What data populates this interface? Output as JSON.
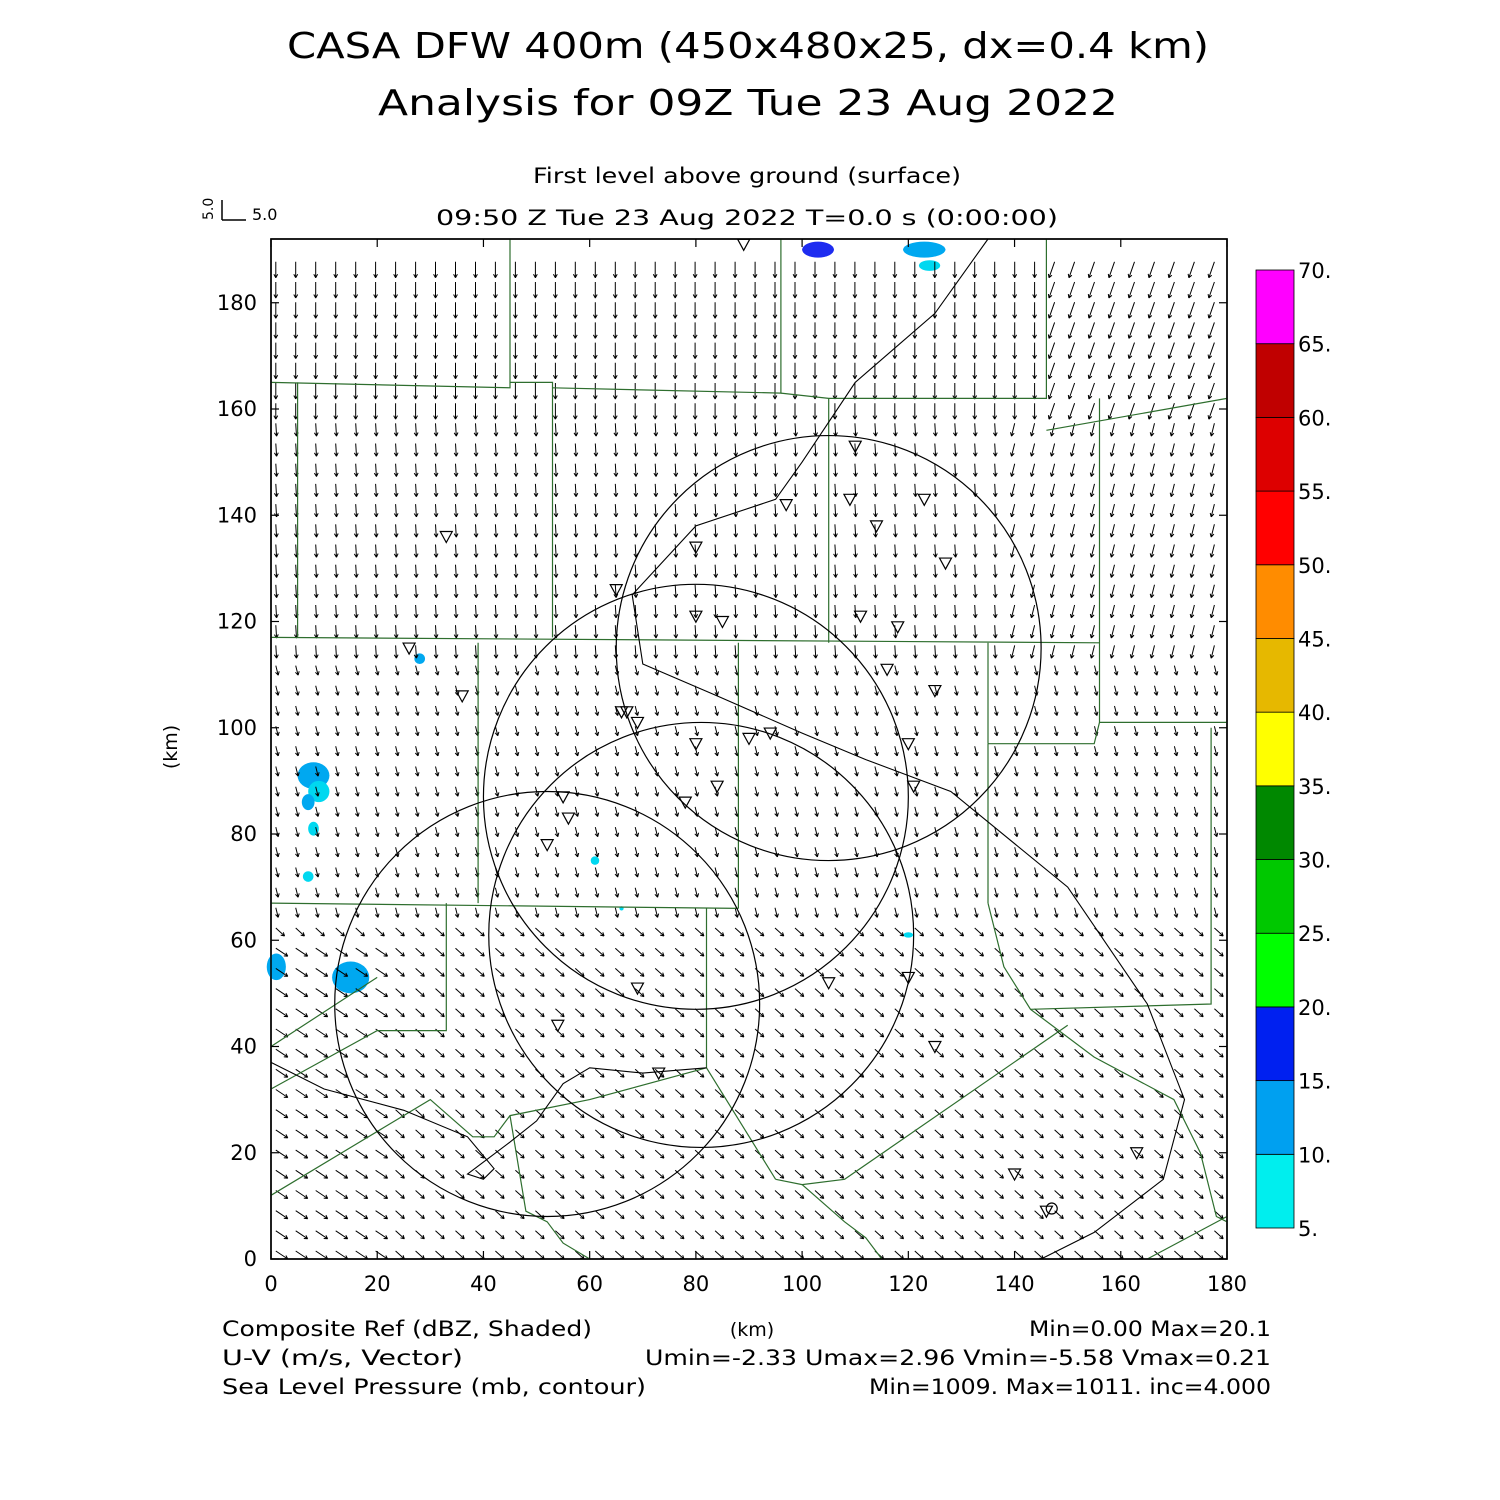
{
  "header": {
    "title_line1": "CASA DFW 400m (450x480x25, dx=0.4 km)",
    "title_line2": "Analysis for 09Z Tue 23 Aug 2022",
    "level": "First level above ground (surface)",
    "time": "09:50 Z Tue 23 Aug 2022   T=0.0 s (0:00:00)"
  },
  "vector_key": {
    "vertical": "5.0",
    "horizontal": "5.0"
  },
  "axes": {
    "x_label": "(km)",
    "y_label": "(km)",
    "x_ticks": [
      "0",
      "20",
      "40",
      "60",
      "80",
      "100",
      "120",
      "140",
      "160",
      "180"
    ],
    "y_ticks": [
      "0",
      "20",
      "40",
      "60",
      "80",
      "100",
      "120",
      "140",
      "160",
      "180"
    ],
    "x_range": [
      0,
      180
    ],
    "y_range": [
      0,
      192
    ]
  },
  "colorbar": {
    "labels": [
      "5.",
      "10.",
      "15.",
      "20.",
      "25.",
      "30.",
      "35.",
      "40.",
      "45.",
      "50.",
      "55.",
      "60.",
      "65.",
      "70."
    ],
    "colors": [
      "#00eeee",
      "#00a0f0",
      "#0020f0",
      "#0000c8",
      "#00ff00",
      "#00c800",
      "#009000",
      "#008000",
      "#ffff00",
      "#e6b800",
      "#ff8c00",
      "#ff0000",
      "#dd0000",
      "#c00000",
      "#ff00ff"
    ]
  },
  "footer": {
    "left1": "Composite Ref (dBZ, Shaded)",
    "left2": "U-V (m/s, Vector)",
    "left3": "Sea Level Pressure (mb, contour)",
    "center": "(km)",
    "right1": "Min=0.00 Max=20.1",
    "right2": "Umin=-2.33 Umax=2.96 Vmin=-5.58 Vmax=0.21",
    "right3": "Min=1009. Max=1011. inc=4.000"
  },
  "map_data": {
    "radar_rings": [
      {
        "cx": 105,
        "cy": 115,
        "r": 40
      },
      {
        "cx": 80,
        "cy": 87,
        "r": 40
      },
      {
        "cx": 81,
        "cy": 61,
        "r": 40
      },
      {
        "cx": 52,
        "cy": 48,
        "r": 40
      }
    ],
    "stations": [
      [
        89,
        191
      ],
      [
        110,
        153
      ],
      [
        97,
        142
      ],
      [
        109,
        143
      ],
      [
        123,
        143
      ],
      [
        114,
        138
      ],
      [
        127,
        131
      ],
      [
        33,
        136
      ],
      [
        80,
        134
      ],
      [
        65,
        126
      ],
      [
        80,
        121
      ],
      [
        85,
        120
      ],
      [
        111,
        121
      ],
      [
        118,
        119
      ],
      [
        26,
        115
      ],
      [
        116,
        111
      ],
      [
        36,
        106
      ],
      [
        125,
        107
      ],
      [
        66,
        103
      ],
      [
        67,
        103
      ],
      [
        69,
        101
      ],
      [
        94,
        99
      ],
      [
        90,
        98
      ],
      [
        80,
        97
      ],
      [
        120,
        97
      ],
      [
        84,
        89
      ],
      [
        121,
        89
      ],
      [
        55,
        87
      ],
      [
        78,
        86
      ],
      [
        56,
        83
      ],
      [
        52,
        78
      ],
      [
        69,
        51
      ],
      [
        120,
        53
      ],
      [
        105,
        52
      ],
      [
        54,
        44
      ],
      [
        125,
        40
      ],
      [
        73,
        35
      ],
      [
        163,
        20
      ],
      [
        140,
        16
      ],
      [
        146,
        9
      ]
    ],
    "reflectivity_blobs": [
      [
        8,
        91,
        3,
        2.5,
        1
      ],
      [
        9,
        88,
        2,
        2,
        0
      ],
      [
        7,
        86,
        1.2,
        1.5,
        1
      ],
      [
        8,
        81,
        1,
        1.3,
        0
      ],
      [
        7,
        72,
        1,
        1,
        0
      ],
      [
        28,
        113,
        1,
        1,
        1
      ],
      [
        61,
        75,
        0.8,
        0.8,
        0
      ],
      [
        66,
        66,
        0.4,
        0.4,
        0
      ],
      [
        120,
        61,
        0.9,
        0.5,
        0
      ],
      [
        1,
        55,
        1.8,
        2.5,
        1
      ],
      [
        15,
        53,
        3.5,
        3,
        1
      ],
      [
        103,
        190,
        3,
        1.5,
        2
      ],
      [
        123,
        190,
        4,
        1.5,
        1
      ],
      [
        124,
        187,
        2,
        1,
        0
      ]
    ]
  }
}
